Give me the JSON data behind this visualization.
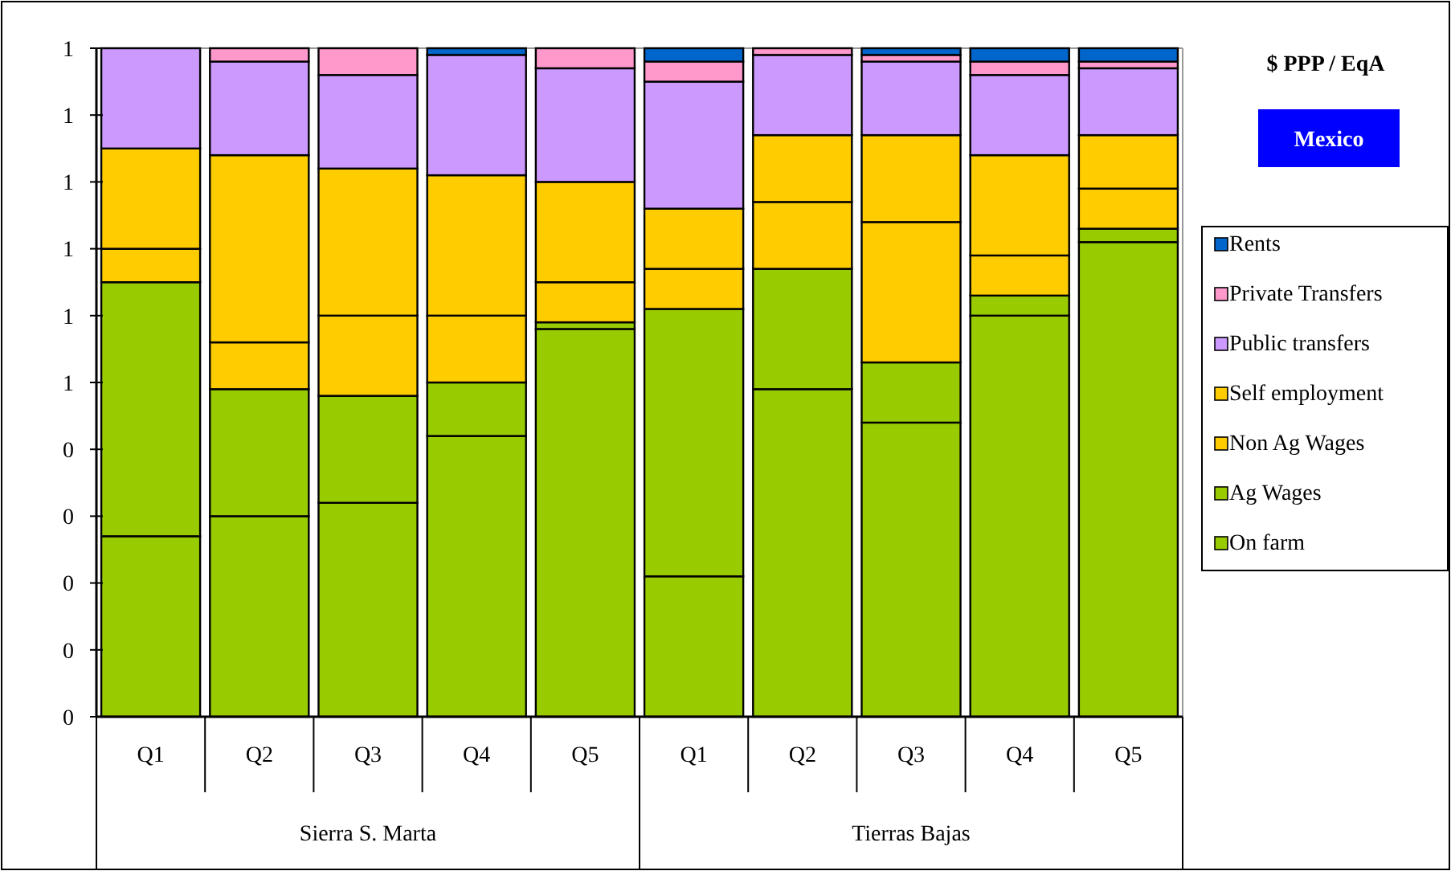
{
  "chart_data": {
    "type": "bar",
    "stacked": true,
    "title": "$ PPP / EqA",
    "subtitle": "Mexico",
    "categories": [
      "Q1",
      "Q2",
      "Q3",
      "Q4",
      "Q5",
      "Q1",
      "Q2",
      "Q3",
      "Q4",
      "Q5"
    ],
    "annotations": [
      "Sierra S. Marta",
      "Tierras Bajas"
    ],
    "series": [
      {
        "name": "On farm",
        "color": "#99cc00",
        "values": [
          0.27,
          0.3,
          0.32,
          0.42,
          0.58,
          0.21,
          0.49,
          0.44,
          0.6,
          0.71
        ]
      },
      {
        "name": "Ag Wages",
        "color": "#99cc00",
        "values": [
          0.38,
          0.19,
          0.16,
          0.08,
          0.01,
          0.4,
          0.18,
          0.09,
          0.03,
          0.02
        ]
      },
      {
        "name": "Non Ag Wages",
        "color": "#ffcc00",
        "values": [
          0.05,
          0.07,
          0.12,
          0.1,
          0.06,
          0.06,
          0.1,
          0.21,
          0.06,
          0.06
        ]
      },
      {
        "name": "Self employment",
        "color": "#ffcc00",
        "values": [
          0.15,
          0.28,
          0.22,
          0.21,
          0.15,
          0.09,
          0.1,
          0.13,
          0.15,
          0.08
        ]
      },
      {
        "name": "Public transfers",
        "color": "#cc99ff",
        "values": [
          0.15,
          0.14,
          0.14,
          0.18,
          0.17,
          0.19,
          0.12,
          0.11,
          0.12,
          0.1
        ]
      },
      {
        "name": "Private Transfers",
        "color": "#ff99cc",
        "values": [
          0,
          0.02,
          0.04,
          0,
          0.03,
          0.03,
          0.01,
          0.01,
          0.02,
          0.01
        ]
      },
      {
        "name": "Rents",
        "color": "#0066cc",
        "values": [
          0,
          0,
          0,
          0.01,
          0,
          0.02,
          0,
          0.01,
          0.02,
          0.02
        ]
      }
    ],
    "ylim": [
      0,
      1
    ],
    "yticks": [
      {
        "value": 0,
        "label": "0"
      },
      {
        "value": 0.1,
        "label": "0"
      },
      {
        "value": 0.2,
        "label": "0"
      },
      {
        "value": 0.3,
        "label": "0"
      },
      {
        "value": 0.4,
        "label": "0"
      },
      {
        "value": 0.5,
        "label": "1"
      },
      {
        "value": 0.6,
        "label": "1"
      },
      {
        "value": 0.7,
        "label": "1"
      },
      {
        "value": 0.8,
        "label": "1"
      },
      {
        "value": 0.9,
        "label": "1"
      },
      {
        "value": 1,
        "label": "1"
      }
    ],
    "grid": false,
    "legend": "right"
  }
}
